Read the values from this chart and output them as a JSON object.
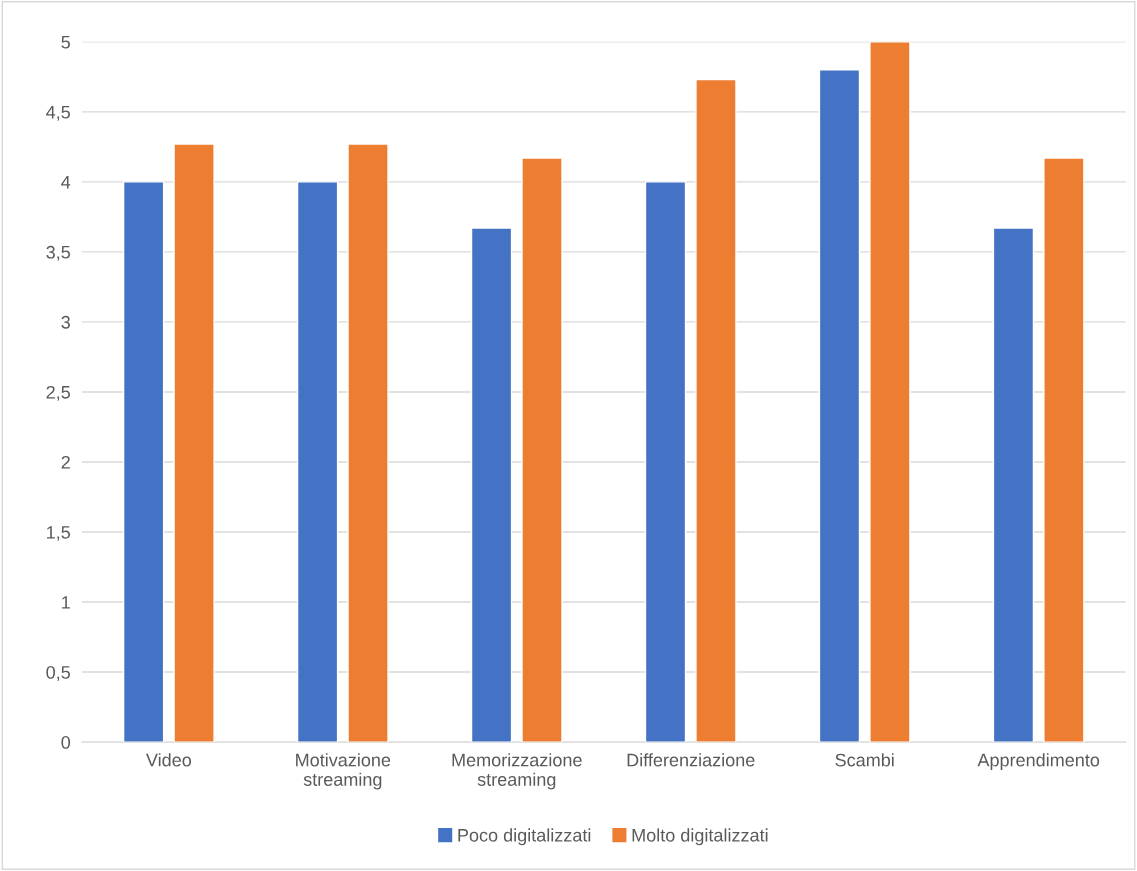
{
  "chart_data": {
    "type": "bar",
    "categories": [
      "Video",
      "Motivazione\nstreaming",
      "Memorizzazione\nstreaming",
      "Differenziazione",
      "Scambi",
      "Apprendimento"
    ],
    "series": [
      {
        "name": "Poco digitalizzati",
        "color": "#4472c4",
        "values": [
          4.0,
          4.0,
          3.67,
          4.0,
          4.8,
          3.67
        ]
      },
      {
        "name": "Molto digitalizzati",
        "color": "#ed7d31",
        "values": [
          4.27,
          4.27,
          4.17,
          4.73,
          5.0,
          4.17
        ]
      }
    ],
    "ylim": [
      0,
      5
    ],
    "yticks": [
      {
        "value": 0,
        "label": "0"
      },
      {
        "value": 0.5,
        "label": "0,5"
      },
      {
        "value": 1,
        "label": "1"
      },
      {
        "value": 1.5,
        "label": "1,5"
      },
      {
        "value": 2,
        "label": "2"
      },
      {
        "value": 2.5,
        "label": "2,5"
      },
      {
        "value": 3,
        "label": "3"
      },
      {
        "value": 3.5,
        "label": "3,5"
      },
      {
        "value": 4,
        "label": "4"
      },
      {
        "value": 4.5,
        "label": "4,5"
      },
      {
        "value": 5,
        "label": "5"
      }
    ],
    "grid": "y",
    "legend": "bottom"
  }
}
